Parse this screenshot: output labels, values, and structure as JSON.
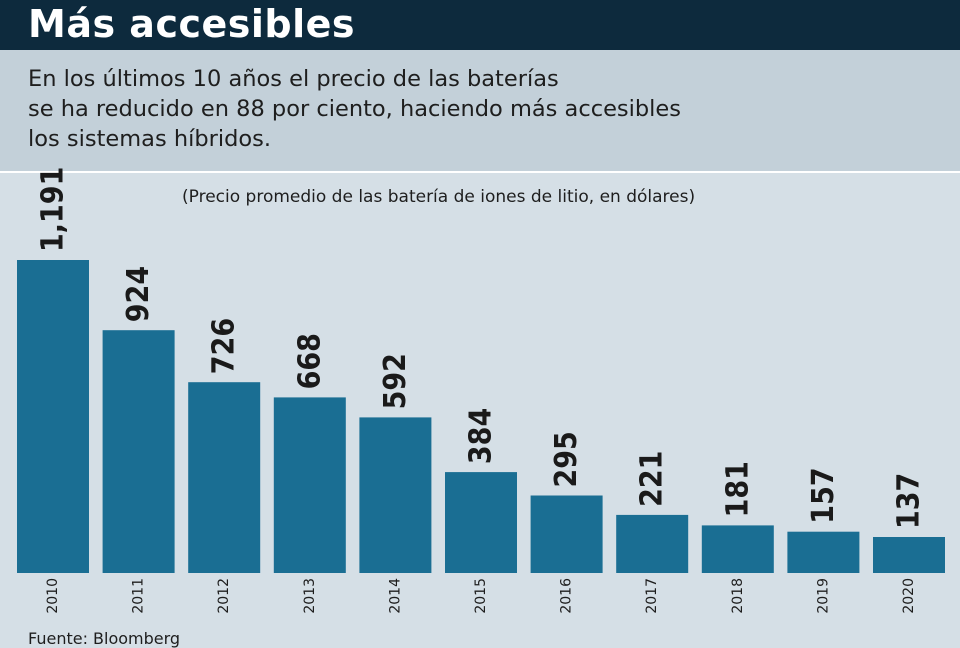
{
  "header": {
    "title": "Más accesibles"
  },
  "intro": {
    "lines": [
      "En los últimos 10 años el precio de las baterías",
      "se ha reducido en 88 por ciento, haciendo más accesibles",
      "los sistemas híbridos."
    ]
  },
  "source": "Fuente: Bloomberg",
  "colors": {
    "header_bg": "#0d2a3d",
    "intro_bg": "#c3d0d9",
    "plot_bg": "#d5dfe6",
    "bar": "#1a6e93"
  },
  "chart_data": {
    "type": "bar",
    "subtitle": "(Precio promedio de las batería de iones de litio, en dólares)",
    "categories": [
      "2010",
      "2011",
      "2012",
      "2013",
      "2014",
      "2015",
      "2016",
      "2017",
      "2018",
      "2019",
      "2020"
    ],
    "values": [
      1191,
      924,
      726,
      668,
      592,
      384,
      295,
      221,
      181,
      157,
      137
    ],
    "value_labels": [
      "1,191",
      "924",
      "726",
      "668",
      "592",
      "384",
      "295",
      "221",
      "181",
      "157",
      "137"
    ],
    "grid": false,
    "legend": "none"
  }
}
